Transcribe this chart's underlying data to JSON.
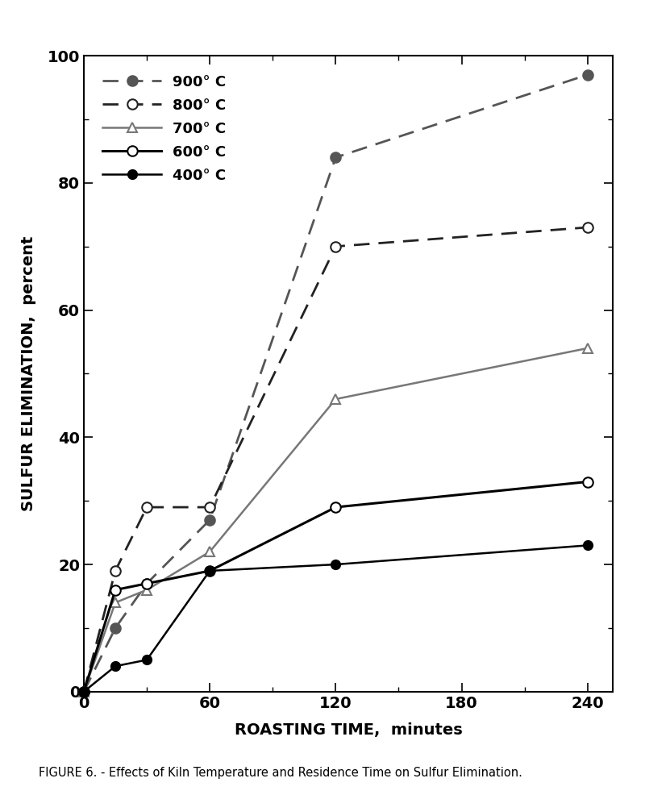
{
  "series": [
    {
      "label": "900° C",
      "x": [
        0,
        15,
        30,
        60,
        120,
        240
      ],
      "y": [
        0,
        10,
        17,
        27,
        84,
        97
      ],
      "color": "#555555",
      "linestyle": "dashed",
      "marker": "o",
      "markerfacecolor": "#555555",
      "linewidth": 2.0,
      "markersize": 9
    },
    {
      "label": "800° C",
      "x": [
        0,
        15,
        30,
        60,
        120,
        240
      ],
      "y": [
        0,
        19,
        29,
        29,
        70,
        73
      ],
      "color": "#222222",
      "linestyle": "dashed",
      "marker": "o",
      "markerfacecolor": "white",
      "linewidth": 2.0,
      "markersize": 9
    },
    {
      "label": "700° C",
      "x": [
        0,
        15,
        30,
        60,
        120,
        240
      ],
      "y": [
        0,
        14,
        16,
        22,
        46,
        54
      ],
      "color": "#777777",
      "linestyle": "solid",
      "marker": "^",
      "markerfacecolor": "white",
      "linewidth": 1.8,
      "markersize": 9
    },
    {
      "label": "600° C",
      "x": [
        0,
        15,
        30,
        60,
        120,
        240
      ],
      "y": [
        0,
        16,
        17,
        19,
        29,
        33
      ],
      "color": "#000000",
      "linestyle": "solid",
      "marker": "o",
      "markerfacecolor": "white",
      "linewidth": 2.2,
      "markersize": 9
    },
    {
      "label": "400° C",
      "x": [
        0,
        15,
        30,
        60,
        120,
        240
      ],
      "y": [
        0,
        4,
        5,
        19,
        20,
        23
      ],
      "color": "#000000",
      "linestyle": "solid",
      "marker": "o",
      "markerfacecolor": "#000000",
      "linewidth": 1.8,
      "markersize": 8
    }
  ],
  "xlabel": "ROASTING TIME,  minutes",
  "ylabel": "SULFUR ELIMINATION,  percent",
  "xlim": [
    0,
    252
  ],
  "ylim": [
    0,
    100
  ],
  "xticks": [
    0,
    60,
    120,
    180,
    240
  ],
  "yticks": [
    0,
    20,
    40,
    60,
    80,
    100
  ],
  "figure_caption": "FIGURE 6. - Effects of Kiln Temperature and Residence Time on Sulfur Elimination.",
  "background_color": "#ffffff"
}
